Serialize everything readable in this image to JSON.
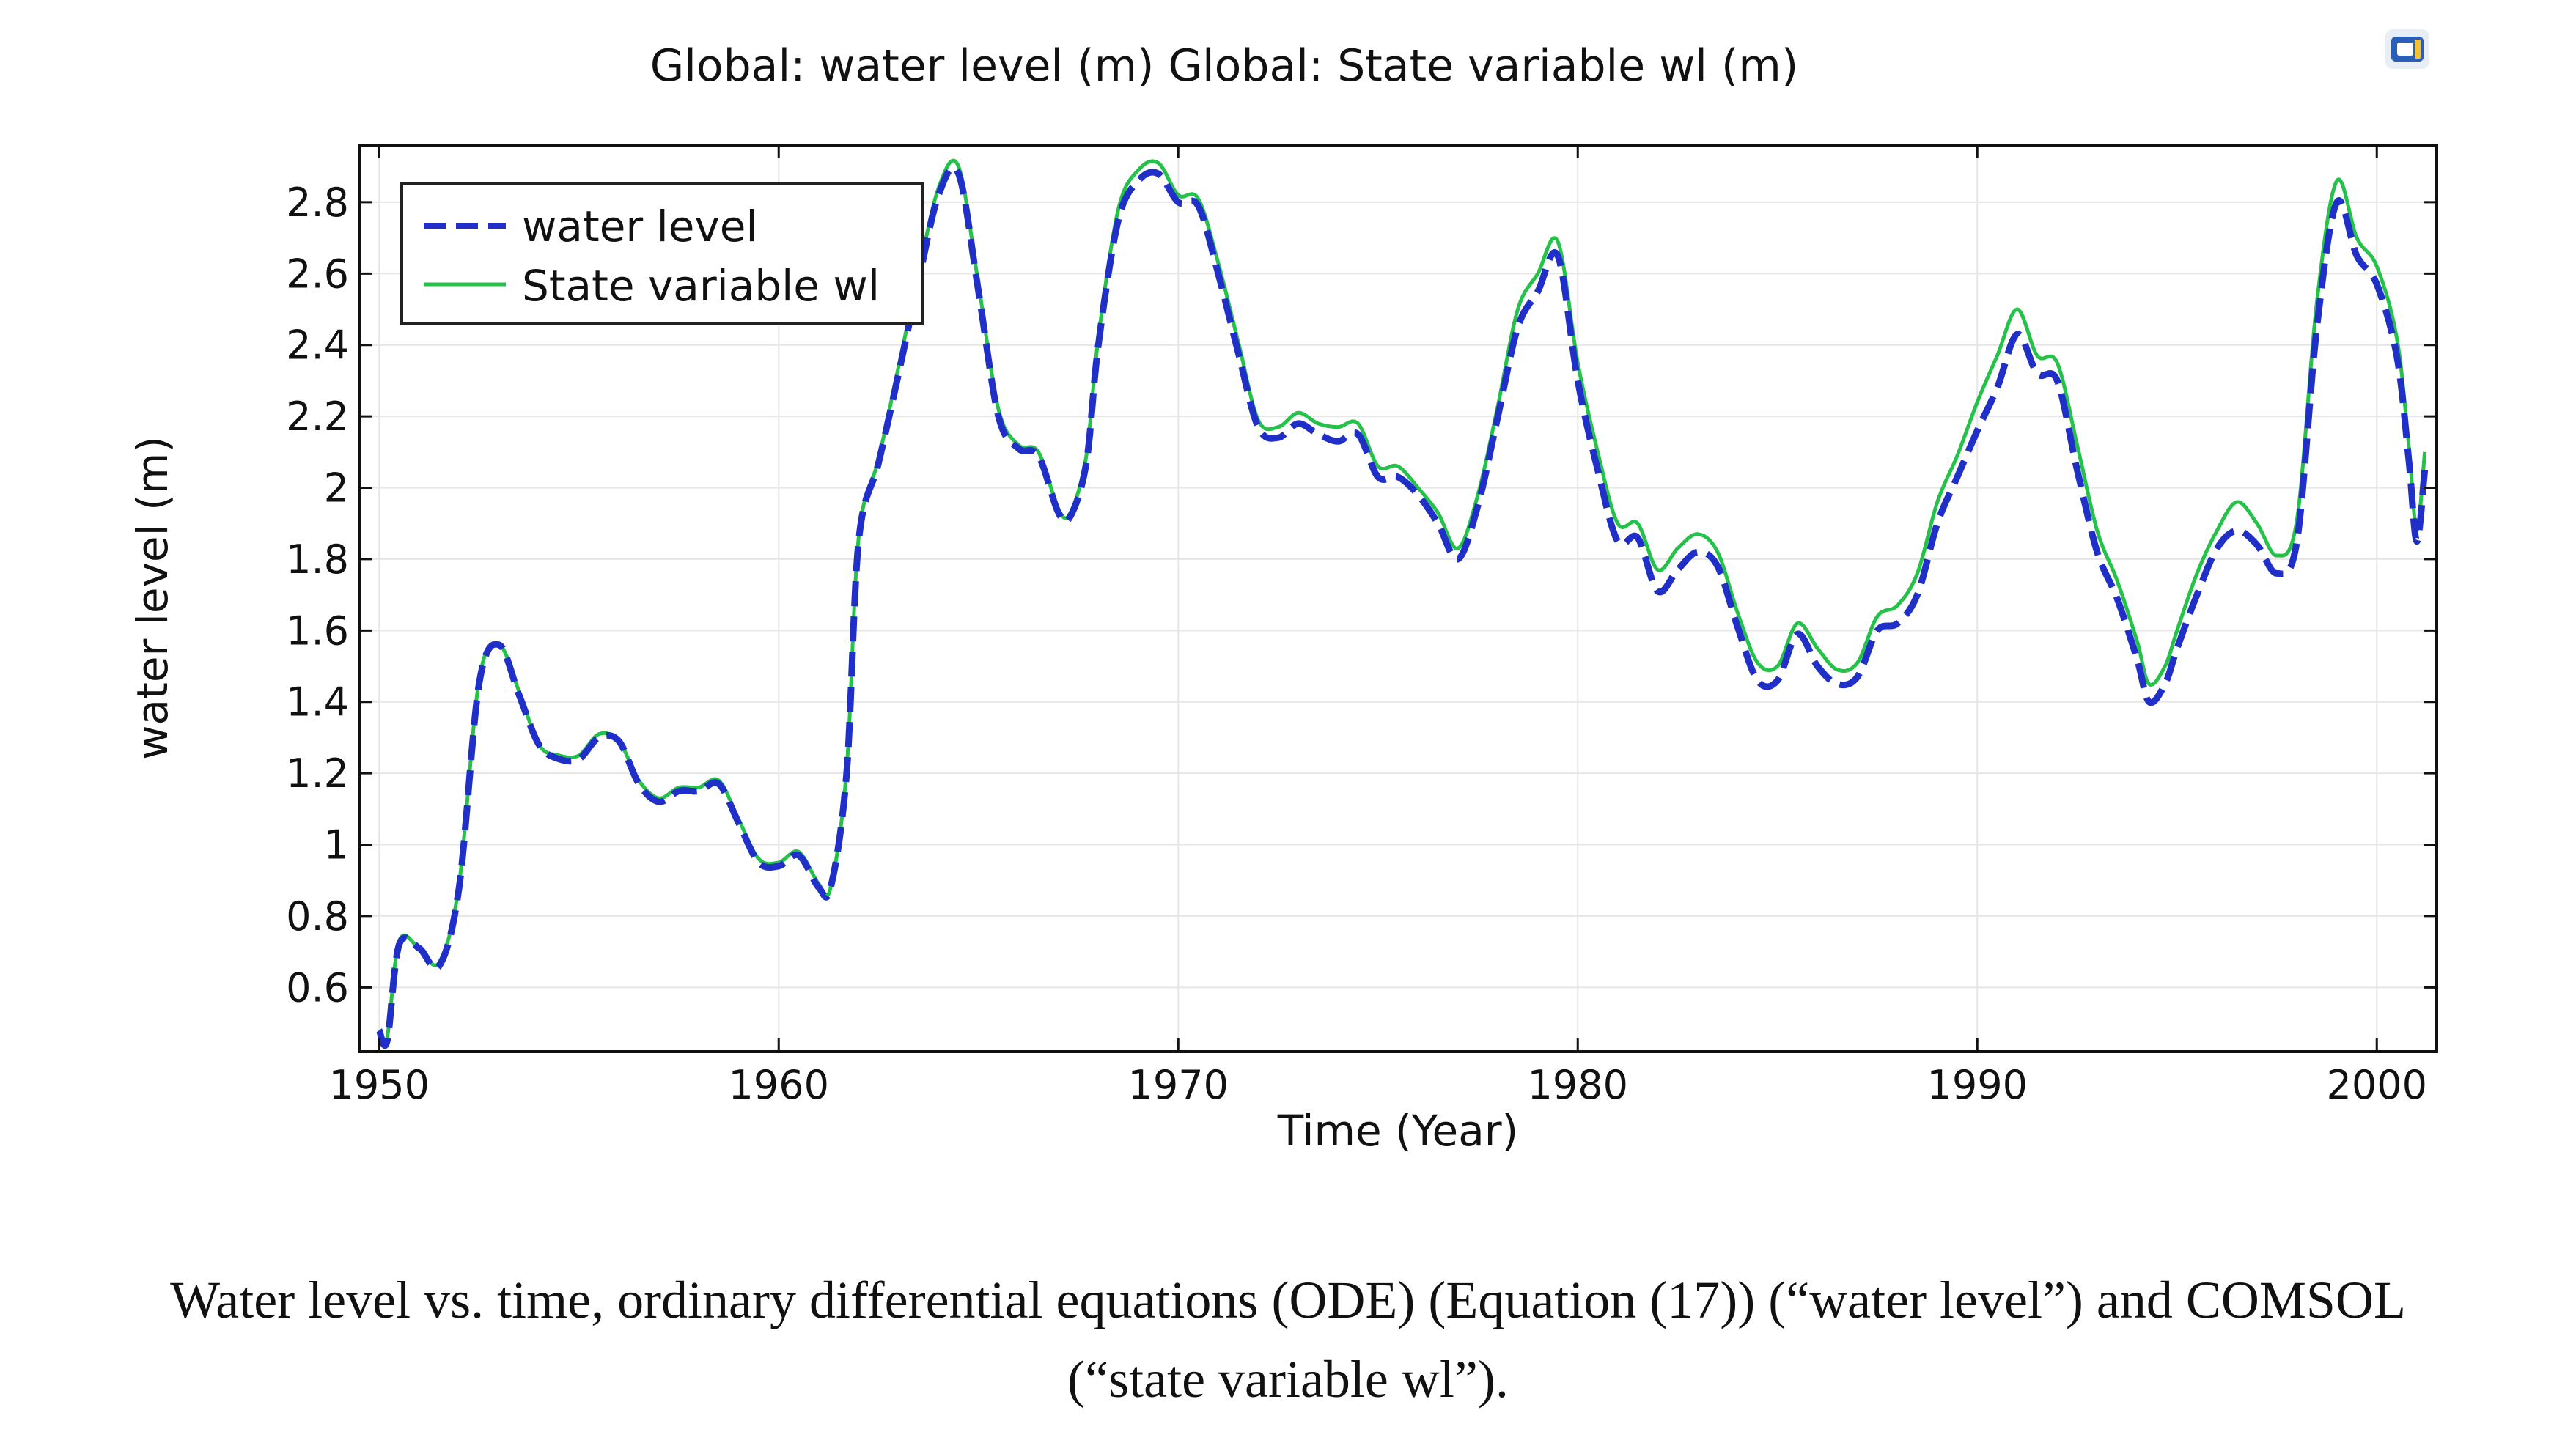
{
  "chart_data": {
    "type": "line",
    "title": "Global: water level (m)  Global: State variable wl (m)",
    "xlabel": "Time (Year)",
    "ylabel": "water level (m)",
    "xlim": [
      1949.5,
      2001.5
    ],
    "ylim": [
      0.42,
      2.96
    ],
    "grid": true,
    "legend_position": "top-left",
    "x_ticks": [
      1950,
      1960,
      1970,
      1980,
      1990,
      2000
    ],
    "x_tick_labels": [
      "1950",
      "1960",
      "1970",
      "1980",
      "1990",
      "2000"
    ],
    "y_ticks": [
      0.6,
      0.8,
      1.0,
      1.2,
      1.4,
      1.6,
      1.8,
      2.0,
      2.2,
      2.4,
      2.6,
      2.8
    ],
    "y_tick_labels": [
      "0.6",
      "0.8",
      "1",
      "1.2",
      "1.4",
      "1.6",
      "1.8",
      "2",
      "2.2",
      "2.4",
      "2.6",
      "2.8"
    ],
    "series": [
      {
        "name": "water level",
        "color": "#1f2fc8",
        "style": "dashed",
        "x": [
          1950.0,
          1950.2,
          1950.5,
          1951.0,
          1951.5,
          1952.0,
          1952.5,
          1953.0,
          1953.5,
          1954.0,
          1954.5,
          1955.0,
          1955.5,
          1956.0,
          1956.5,
          1957.0,
          1957.5,
          1958.0,
          1958.5,
          1959.0,
          1959.5,
          1960.0,
          1960.5,
          1961.0,
          1961.3,
          1961.7,
          1962.0,
          1962.5,
          1963.0,
          1963.5,
          1964.0,
          1964.5,
          1965.0,
          1965.5,
          1966.0,
          1966.5,
          1967.0,
          1967.3,
          1967.7,
          1968.0,
          1968.5,
          1969.0,
          1969.5,
          1970.0,
          1970.5,
          1971.0,
          1971.5,
          1972.0,
          1972.5,
          1973.0,
          1973.5,
          1974.0,
          1974.5,
          1975.0,
          1975.5,
          1976.0,
          1976.5,
          1977.0,
          1977.5,
          1978.0,
          1978.5,
          1979.0,
          1979.5,
          1980.0,
          1980.5,
          1981.0,
          1981.5,
          1982.0,
          1982.5,
          1983.0,
          1983.5,
          1984.0,
          1984.5,
          1985.0,
          1985.5,
          1986.0,
          1986.5,
          1987.0,
          1987.5,
          1988.0,
          1988.5,
          1989.0,
          1989.5,
          1990.0,
          1990.5,
          1991.0,
          1991.5,
          1992.0,
          1992.5,
          1993.0,
          1993.5,
          1994.0,
          1994.3,
          1994.7,
          1995.0,
          1995.5,
          1996.0,
          1996.5,
          1997.0,
          1997.5,
          1998.0,
          1998.5,
          1999.0,
          1999.5,
          2000.0,
          2000.5,
          2000.8,
          2001.0,
          2001.2
        ],
        "values": [
          0.48,
          0.45,
          0.72,
          0.71,
          0.66,
          0.88,
          1.45,
          1.56,
          1.42,
          1.28,
          1.24,
          1.24,
          1.3,
          1.29,
          1.17,
          1.12,
          1.15,
          1.15,
          1.17,
          1.06,
          0.95,
          0.94,
          0.97,
          0.88,
          0.88,
          1.2,
          1.85,
          2.07,
          2.32,
          2.58,
          2.82,
          2.88,
          2.55,
          2.2,
          2.11,
          2.09,
          1.93,
          1.92,
          2.07,
          2.4,
          2.75,
          2.86,
          2.88,
          2.8,
          2.79,
          2.6,
          2.38,
          2.17,
          2.14,
          2.18,
          2.15,
          2.13,
          2.15,
          2.03,
          2.03,
          1.98,
          1.9,
          1.8,
          1.95,
          2.2,
          2.45,
          2.55,
          2.65,
          2.3,
          2.05,
          1.85,
          1.86,
          1.71,
          1.77,
          1.82,
          1.78,
          1.61,
          1.46,
          1.46,
          1.59,
          1.5,
          1.45,
          1.47,
          1.6,
          1.62,
          1.7,
          1.9,
          2.03,
          2.16,
          2.28,
          2.43,
          2.32,
          2.3,
          2.05,
          1.82,
          1.69,
          1.52,
          1.4,
          1.45,
          1.55,
          1.7,
          1.83,
          1.88,
          1.84,
          1.76,
          1.85,
          2.45,
          2.8,
          2.65,
          2.57,
          2.37,
          2.08,
          1.85,
          2.05
        ]
      },
      {
        "name": "State variable wl",
        "color": "#25c24a",
        "style": "solid",
        "x": [
          1950.0,
          1950.2,
          1950.5,
          1951.0,
          1951.5,
          1952.0,
          1952.5,
          1953.0,
          1953.5,
          1954.0,
          1954.5,
          1955.0,
          1955.5,
          1956.0,
          1956.5,
          1957.0,
          1957.5,
          1958.0,
          1958.5,
          1959.0,
          1959.5,
          1960.0,
          1960.5,
          1961.0,
          1961.3,
          1961.7,
          1962.0,
          1962.5,
          1963.0,
          1963.5,
          1964.0,
          1964.5,
          1965.0,
          1965.5,
          1966.0,
          1966.5,
          1967.0,
          1967.3,
          1967.7,
          1968.0,
          1968.5,
          1969.0,
          1969.5,
          1970.0,
          1970.5,
          1971.0,
          1971.5,
          1972.0,
          1972.5,
          1973.0,
          1973.5,
          1974.0,
          1974.5,
          1975.0,
          1975.5,
          1976.0,
          1976.5,
          1977.0,
          1977.5,
          1978.0,
          1978.5,
          1979.0,
          1979.5,
          1980.0,
          1980.5,
          1981.0,
          1981.5,
          1982.0,
          1982.5,
          1983.0,
          1983.5,
          1984.0,
          1984.5,
          1985.0,
          1985.5,
          1986.0,
          1986.5,
          1987.0,
          1987.5,
          1988.0,
          1988.5,
          1989.0,
          1989.5,
          1990.0,
          1990.5,
          1991.0,
          1991.5,
          1992.0,
          1992.5,
          1993.0,
          1993.5,
          1994.0,
          1994.3,
          1994.7,
          1995.0,
          1995.5,
          1996.0,
          1996.5,
          1997.0,
          1997.5,
          1998.0,
          1998.5,
          1999.0,
          1999.5,
          2000.0,
          2000.5,
          2000.8,
          2001.0,
          2001.2
        ],
        "values": [
          0.48,
          0.46,
          0.73,
          0.71,
          0.67,
          0.89,
          1.46,
          1.56,
          1.43,
          1.28,
          1.25,
          1.25,
          1.31,
          1.29,
          1.18,
          1.13,
          1.16,
          1.16,
          1.18,
          1.07,
          0.96,
          0.95,
          0.98,
          0.89,
          0.88,
          1.21,
          1.86,
          2.08,
          2.34,
          2.6,
          2.84,
          2.9,
          2.57,
          2.22,
          2.12,
          2.1,
          1.94,
          1.93,
          2.09,
          2.42,
          2.78,
          2.89,
          2.91,
          2.82,
          2.81,
          2.63,
          2.41,
          2.19,
          2.17,
          2.21,
          2.18,
          2.17,
          2.18,
          2.06,
          2.06,
          2.0,
          1.93,
          1.83,
          1.98,
          2.23,
          2.5,
          2.6,
          2.69,
          2.35,
          2.1,
          1.9,
          1.9,
          1.77,
          1.83,
          1.87,
          1.82,
          1.65,
          1.51,
          1.5,
          1.62,
          1.55,
          1.49,
          1.51,
          1.64,
          1.67,
          1.76,
          1.96,
          2.09,
          2.24,
          2.37,
          2.5,
          2.37,
          2.35,
          2.12,
          1.88,
          1.74,
          1.57,
          1.45,
          1.5,
          1.6,
          1.76,
          1.88,
          1.96,
          1.9,
          1.81,
          1.91,
          2.52,
          2.86,
          2.7,
          2.62,
          2.42,
          2.12,
          1.88,
          2.1
        ]
      }
    ]
  },
  "caption": {
    "line1": "Water level vs. time, ordinary differential equations (ODE) (Equation (17)) (“water level”) and COMSOL",
    "line2": "(“state variable wl”)."
  },
  "toolbar": {
    "icon": "comsol-window-icon"
  }
}
